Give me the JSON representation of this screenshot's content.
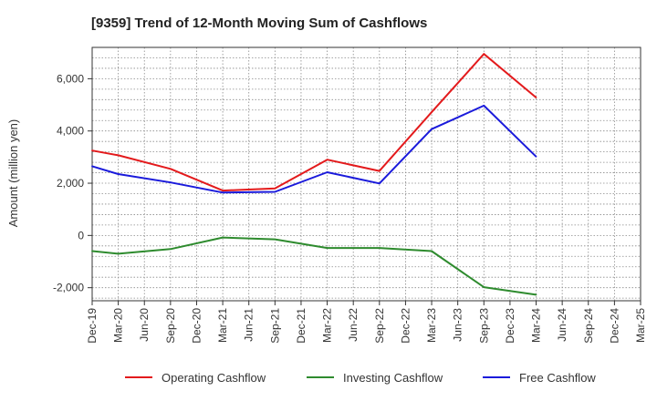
{
  "chart_data": {
    "type": "line",
    "title": "[9359]  Trend of 12-Month Moving Sum of Cashflows",
    "xlabel": "",
    "ylabel": "Amount (million yen)",
    "ylim": [
      -2500,
      7200
    ],
    "yticks": [
      -2000,
      0,
      2000,
      4000,
      6000
    ],
    "ytick_labels": [
      "-2,000",
      "0",
      "2,000",
      "4,000",
      "6,000"
    ],
    "categories": [
      "Dec-19",
      "Mar-20",
      "Jun-20",
      "Sep-20",
      "Dec-20",
      "Mar-21",
      "Jun-21",
      "Sep-21",
      "Dec-21",
      "Mar-22",
      "Jun-22",
      "Sep-22",
      "Dec-22",
      "Mar-23",
      "Jun-23",
      "Sep-23",
      "Dec-23",
      "Mar-24",
      "Jun-24",
      "Sep-24",
      "Dec-24",
      "Mar-25"
    ],
    "grid": true,
    "legend_position": "bottom",
    "series": [
      {
        "name": "Operating Cashflow",
        "color": "#e31a1c",
        "values": [
          3250,
          3070,
          null,
          2550,
          null,
          1720,
          null,
          1800,
          null,
          2900,
          null,
          2470,
          null,
          4720,
          null,
          6950,
          null,
          5280,
          null,
          null,
          null,
          null
        ]
      },
      {
        "name": "Investing Cashflow",
        "color": "#2e8b2e",
        "values": [
          -600,
          -700,
          null,
          -520,
          null,
          -80,
          null,
          -150,
          null,
          -480,
          null,
          -480,
          null,
          -600,
          null,
          -1980,
          null,
          -2270,
          null,
          null,
          null,
          null
        ]
      },
      {
        "name": "Free Cashflow",
        "color": "#1a1adb",
        "values": [
          2650,
          2350,
          null,
          2030,
          null,
          1640,
          null,
          1670,
          null,
          2420,
          null,
          1990,
          null,
          4070,
          null,
          4970,
          null,
          3020,
          null,
          null,
          null,
          null
        ]
      }
    ]
  }
}
